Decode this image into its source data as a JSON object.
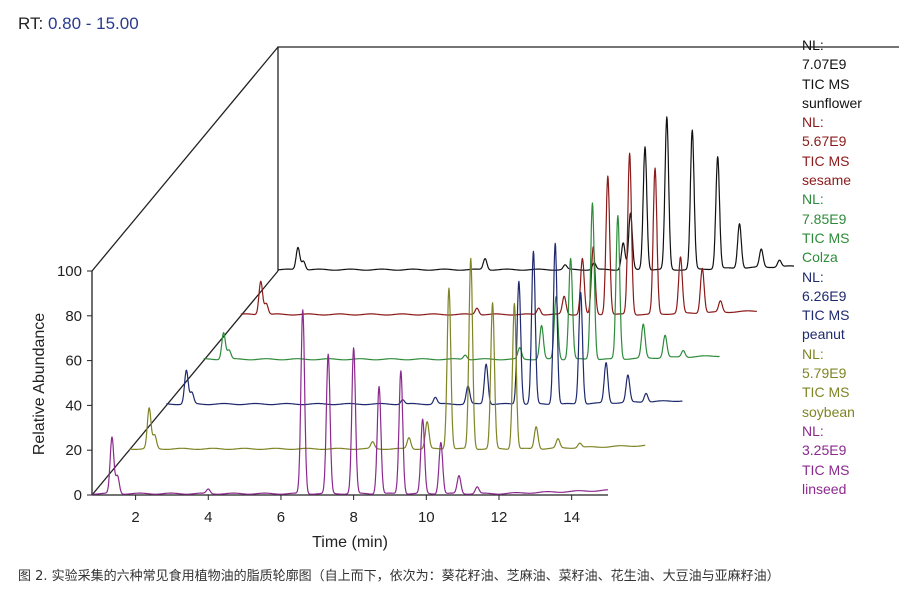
{
  "rt_range": {
    "label": "RT:",
    "value": "0.80 - 15.00"
  },
  "caption": "图 2. 实验采集的六种常见食用植物油的脂质轮廓图（自上而下，依次为：葵花籽油、芝麻油、菜籽油、花生油、大豆油与亚麻籽油）",
  "chart_data": {
    "type": "line",
    "title": "",
    "xlabel": "Time (min)",
    "ylabel": "Relative Abundance",
    "xlim": [
      0.8,
      15.0
    ],
    "ylim": [
      0,
      100
    ],
    "x_ticks": [
      2,
      4,
      6,
      8,
      10,
      12,
      14
    ],
    "y_ticks": [
      0,
      20,
      40,
      60,
      80,
      100
    ],
    "layout": "3d-waterfall",
    "series": [
      {
        "name": "sunflower",
        "nl_label": "NL:",
        "nl_value": "7.07E9",
        "trace_label": "TIC  MS",
        "color": "#111111",
        "peaks": [
          [
            1.35,
            10
          ],
          [
            1.5,
            4
          ],
          [
            6.5,
            5
          ],
          [
            8.7,
            2
          ],
          [
            9.5,
            3
          ],
          [
            10.3,
            12
          ],
          [
            10.5,
            25
          ],
          [
            10.9,
            55
          ],
          [
            11.5,
            68
          ],
          [
            12.2,
            62
          ],
          [
            12.9,
            50
          ],
          [
            13.5,
            20
          ],
          [
            14.1,
            8
          ],
          [
            14.6,
            3
          ]
        ]
      },
      {
        "name": "sesame",
        "nl_label": "NL:",
        "nl_value": "5.67E9",
        "trace_label": "TIC  MS",
        "color": "#8b1a1a",
        "peaks": [
          [
            1.35,
            15
          ],
          [
            1.5,
            5
          ],
          [
            7.3,
            3
          ],
          [
            9.0,
            3
          ],
          [
            9.7,
            8
          ],
          [
            10.2,
            25
          ],
          [
            10.5,
            30
          ],
          [
            10.9,
            62
          ],
          [
            11.5,
            72
          ],
          [
            12.2,
            65
          ],
          [
            12.9,
            25
          ],
          [
            13.5,
            20
          ],
          [
            14.0,
            5
          ]
        ]
      },
      {
        "name": "Colza",
        "nl_label": "NL:",
        "nl_value": "7.85E9",
        "trace_label": "TIC  MS",
        "color": "#2e8b3a",
        "peaks": [
          [
            1.35,
            12
          ],
          [
            1.5,
            4
          ],
          [
            8.0,
            2
          ],
          [
            9.5,
            5
          ],
          [
            10.1,
            15
          ],
          [
            10.5,
            28
          ],
          [
            10.9,
            45
          ],
          [
            11.5,
            70
          ],
          [
            12.2,
            64
          ],
          [
            12.9,
            15
          ],
          [
            13.5,
            10
          ],
          [
            14.0,
            3
          ]
        ]
      },
      {
        "name": "peanut",
        "nl_label": "NL:",
        "nl_value": "6.26E9",
        "trace_label": "TIC  MS",
        "color": "#1f2a6e",
        "peaks": [
          [
            1.35,
            15
          ],
          [
            1.5,
            5
          ],
          [
            7.3,
            2
          ],
          [
            8.2,
            3
          ],
          [
            9.1,
            8
          ],
          [
            9.6,
            18
          ],
          [
            10.5,
            55
          ],
          [
            10.9,
            68
          ],
          [
            11.5,
            72
          ],
          [
            12.2,
            50
          ],
          [
            12.9,
            18
          ],
          [
            13.5,
            12
          ],
          [
            14.0,
            4
          ]
        ]
      },
      {
        "name": "soybean",
        "nl_label": "NL:",
        "nl_value": "5.79E9",
        "trace_label": "TIC  MS",
        "color": "#7f8424",
        "peaks": [
          [
            1.35,
            18
          ],
          [
            1.5,
            6
          ],
          [
            7.5,
            3
          ],
          [
            8.5,
            5
          ],
          [
            9.0,
            12
          ],
          [
            9.6,
            72
          ],
          [
            10.2,
            85
          ],
          [
            10.8,
            65
          ],
          [
            11.4,
            65
          ],
          [
            12.0,
            10
          ],
          [
            12.6,
            4
          ],
          [
            13.2,
            2
          ]
        ]
      },
      {
        "name": "linseed",
        "nl_label": "NL:",
        "nl_value": "3.25E9",
        "trace_label": "TIC  MS",
        "color": "#8b2a8e",
        "peaks": [
          [
            1.35,
            25
          ],
          [
            1.5,
            8
          ],
          [
            4.0,
            2
          ],
          [
            6.6,
            82
          ],
          [
            7.3,
            62
          ],
          [
            8.0,
            65
          ],
          [
            8.7,
            48
          ],
          [
            9.3,
            55
          ],
          [
            9.9,
            33
          ],
          [
            10.4,
            23
          ],
          [
            10.9,
            8
          ],
          [
            11.4,
            3
          ]
        ]
      }
    ]
  }
}
